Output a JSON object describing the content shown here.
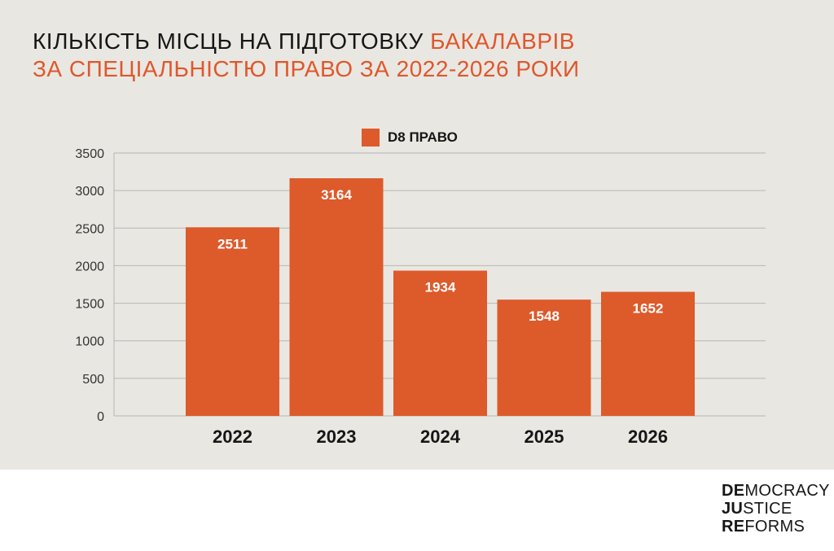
{
  "title": {
    "line1_dark": "КІЛЬКІСТЬ МІСЦЬ НА ПІДГОТОВКУ",
    "line1_accent": "БАКАЛАВРІВ",
    "line2_accent": "ЗА СПЕЦІАЛЬНІСТЮ ПРАВО ЗА 2022-2026 РОКИ"
  },
  "colors": {
    "background": "#e9e7e2",
    "bar": "#dd5a2b",
    "accent": "#e0572b",
    "text": "#161616",
    "grid": "#b8b6b1"
  },
  "chart_data": {
    "type": "bar",
    "categories": [
      "2022",
      "2023",
      "2024",
      "2025",
      "2026"
    ],
    "series": [
      {
        "name": "D8 ПРАВО",
        "values": [
          2511,
          3164,
          1934,
          1548,
          1652
        ]
      }
    ],
    "data_labels": [
      "2511",
      "3164",
      "1934",
      "1548",
      "1652"
    ],
    "y_ticks": [
      0,
      500,
      1000,
      1500,
      2000,
      2500,
      3000,
      3500
    ],
    "ylim": [
      0,
      3500
    ],
    "grid": true,
    "legend_position": "top-center"
  },
  "logo": {
    "lines": [
      {
        "bold": "DE",
        "rest": "MOCRACY"
      },
      {
        "bold": "JU",
        "rest": "STICE"
      },
      {
        "bold": "RE",
        "rest": "FORMS"
      }
    ]
  }
}
